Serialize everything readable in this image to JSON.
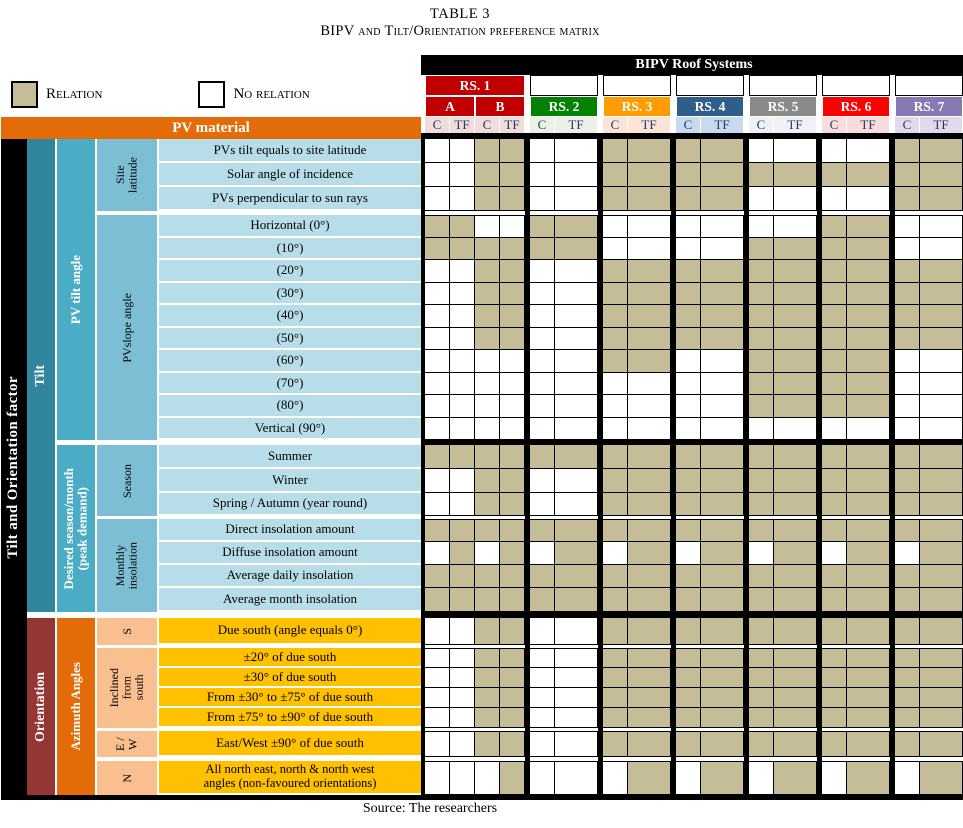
{
  "title": "TABLE 3",
  "subtitle": "BIPV and Tilt/Orientation preference matrix",
  "source": "Source:  The researchers",
  "legend": {
    "relation": "Relation",
    "no_relation": "No relation"
  },
  "colors": {
    "relation_fill": "#C4BD97",
    "no_relation_fill": "#FFFFFF",
    "pv_material_bar": "#E36C09",
    "factor_column": "#000000",
    "tilt_section": "#31859C",
    "orientation_section": "#943634",
    "tilt_subsection": "#4BACC6",
    "azimuth_subsection": "#E36C09",
    "tilt_subsub": "#7CBFD4",
    "orientation_subsub": "#FABF8F",
    "tilt_label_bg": "#B7DEE8",
    "orientation_label_bg": "#FFC000"
  },
  "header": {
    "roof_systems_title": "BIPV Roof Systems",
    "pv_material": "PV material",
    "material_cols": [
      "C",
      "TF"
    ],
    "systems": [
      {
        "name": "RS. 1",
        "color": "#C00000",
        "tint": "#F2DCDB",
        "subs": [
          "A",
          "B"
        ]
      },
      {
        "name": "RS. 2",
        "color": "#038103",
        "tint": "#EBF1E4"
      },
      {
        "name": "RS. 3",
        "color": "#FF9C00",
        "tint": "#FCE4D9"
      },
      {
        "name": "RS. 4",
        "color": "#2F5E8A",
        "tint": "#C7DAF0"
      },
      {
        "name": "RS. 5",
        "color": "#8A8A8A",
        "tint": "#EFF1F4"
      },
      {
        "name": "RS. 6",
        "color": "#FF0000",
        "tint": "#FADCDC"
      },
      {
        "name": "RS. 7",
        "color": "#8878B4",
        "tint": "#E0DAEC"
      }
    ]
  },
  "left": {
    "factor": "Tilt and Orientation factor",
    "sections": [
      {
        "id": "tilt",
        "label": "Tilt",
        "row_start": 0,
        "row_end": 19
      },
      {
        "id": "orientation",
        "label": "Orientation",
        "row_start": 20,
        "row_end": 26
      }
    ],
    "subsections": [
      {
        "id": "pv-tilt-angle",
        "label": "PV tilt angle",
        "group": "tilt",
        "row_start": 0,
        "row_end": 12
      },
      {
        "id": "desired-season",
        "label": "Desired season/month\n(peak demand)",
        "group": "tilt",
        "row_start": 13,
        "row_end": 19
      },
      {
        "id": "azimuth-angles",
        "label": "Azimuth Angles",
        "group": "orientation",
        "row_start": 20,
        "row_end": 26
      }
    ],
    "subsubs": [
      {
        "id": "site-latitude",
        "label": "Site\nlatitude",
        "group": "tilt",
        "row_start": 0,
        "row_end": 2
      },
      {
        "id": "pv-slope-angle",
        "label": "PVslope angle",
        "group": "tilt",
        "row_start": 3,
        "row_end": 12
      },
      {
        "id": "season",
        "label": "Season",
        "group": "tilt",
        "row_start": 13,
        "row_end": 15
      },
      {
        "id": "monthly-insolation",
        "label": "Monthly\ninsolation",
        "group": "tilt",
        "row_start": 16,
        "row_end": 19
      },
      {
        "id": "south",
        "label": "S",
        "group": "orientation",
        "row_start": 20,
        "row_end": 20
      },
      {
        "id": "inclined-from-south",
        "label": "Inclined\nfrom\nsouth",
        "group": "orientation",
        "row_start": 21,
        "row_end": 24
      },
      {
        "id": "east-west",
        "label": "E / W",
        "group": "orientation",
        "row_start": 25,
        "row_end": 25
      },
      {
        "id": "north",
        "label": "N",
        "group": "orientation",
        "row_start": 26,
        "row_end": 26
      }
    ]
  },
  "rows": [
    {
      "label": "PVs tilt equals to site latitude",
      "section": "tilt"
    },
    {
      "label": "Solar angle of incidence",
      "section": "tilt"
    },
    {
      "label": "PVs perpendicular to sun rays",
      "section": "tilt"
    },
    {
      "label": "Horizontal (0°)",
      "section": "tilt"
    },
    {
      "label": "(10°)",
      "section": "tilt"
    },
    {
      "label": "(20°)",
      "section": "tilt"
    },
    {
      "label": "(30°)",
      "section": "tilt"
    },
    {
      "label": "(40°)",
      "section": "tilt"
    },
    {
      "label": "(50°)",
      "section": "tilt"
    },
    {
      "label": "(60°)",
      "section": "tilt"
    },
    {
      "label": "(70°)",
      "section": "tilt"
    },
    {
      "label": "(80°)",
      "section": "tilt"
    },
    {
      "label": "Vertical (90°)",
      "section": "tilt"
    },
    {
      "label": "Summer",
      "section": "tilt"
    },
    {
      "label": "Winter",
      "section": "tilt"
    },
    {
      "label": "Spring / Autumn (year round)",
      "section": "tilt"
    },
    {
      "label": "Direct insolation amount",
      "section": "tilt"
    },
    {
      "label": "Diffuse insolation amount",
      "section": "tilt"
    },
    {
      "label": "Average daily insolation",
      "section": "tilt"
    },
    {
      "label": "Average month insolation",
      "section": "tilt"
    },
    {
      "label": "Due south (angle equals 0°)",
      "section": "orientation"
    },
    {
      "label": "±20° of due south",
      "section": "orientation"
    },
    {
      "label": "±30° of due south",
      "section": "orientation"
    },
    {
      "label": "From ±30° to ±75° of due south",
      "section": "orientation"
    },
    {
      "label": "From ±75° to ±90° of due south",
      "section": "orientation"
    },
    {
      "label": "East/West ±90° of due south",
      "section": "orientation"
    },
    {
      "label": "All north east, north & north west\nangles (non-favoured orientations)",
      "section": "orientation"
    }
  ],
  "matrix_columns": [
    "RS1-A-C",
    "RS1-A-TF",
    "RS1-B-C",
    "RS1-B-TF",
    "RS2-C",
    "RS2-TF",
    "RS3-C",
    "RS3-TF",
    "RS4-C",
    "RS4-TF",
    "RS5-C",
    "RS5-TF",
    "RS6-C",
    "RS6-TF",
    "RS7-C",
    "RS7-TF"
  ],
  "matrix": [
    [
      0,
      0,
      1,
      1,
      0,
      0,
      1,
      1,
      1,
      1,
      0,
      0,
      0,
      0,
      1,
      1
    ],
    [
      0,
      0,
      1,
      1,
      0,
      0,
      1,
      1,
      1,
      1,
      1,
      1,
      1,
      1,
      1,
      1
    ],
    [
      0,
      0,
      1,
      1,
      0,
      0,
      1,
      1,
      1,
      1,
      0,
      0,
      0,
      0,
      1,
      1
    ],
    [
      1,
      1,
      0,
      0,
      1,
      1,
      0,
      0,
      0,
      0,
      0,
      0,
      1,
      1,
      0,
      0
    ],
    [
      1,
      1,
      1,
      1,
      1,
      1,
      0,
      0,
      0,
      0,
      1,
      1,
      1,
      1,
      0,
      0
    ],
    [
      0,
      0,
      1,
      1,
      0,
      0,
      1,
      1,
      1,
      1,
      1,
      1,
      1,
      1,
      1,
      1
    ],
    [
      0,
      0,
      1,
      1,
      0,
      0,
      1,
      1,
      1,
      1,
      1,
      1,
      1,
      1,
      1,
      1
    ],
    [
      0,
      0,
      1,
      1,
      0,
      0,
      1,
      1,
      1,
      1,
      1,
      1,
      1,
      1,
      1,
      1
    ],
    [
      0,
      0,
      1,
      1,
      0,
      0,
      1,
      1,
      1,
      1,
      1,
      1,
      1,
      1,
      1,
      1
    ],
    [
      0,
      0,
      0,
      0,
      0,
      0,
      1,
      1,
      0,
      0,
      1,
      1,
      1,
      1,
      0,
      0
    ],
    [
      0,
      0,
      0,
      0,
      0,
      0,
      0,
      0,
      0,
      0,
      1,
      1,
      1,
      1,
      0,
      0
    ],
    [
      0,
      0,
      0,
      0,
      0,
      0,
      0,
      0,
      0,
      0,
      1,
      1,
      1,
      1,
      0,
      0
    ],
    [
      0,
      0,
      0,
      0,
      0,
      0,
      0,
      0,
      0,
      0,
      0,
      0,
      0,
      0,
      0,
      0
    ],
    [
      1,
      1,
      1,
      1,
      1,
      1,
      1,
      1,
      1,
      1,
      1,
      1,
      1,
      1,
      1,
      1
    ],
    [
      0,
      0,
      1,
      1,
      0,
      0,
      1,
      1,
      1,
      1,
      1,
      1,
      1,
      1,
      1,
      1
    ],
    [
      0,
      0,
      1,
      1,
      0,
      0,
      1,
      1,
      1,
      1,
      1,
      1,
      1,
      1,
      1,
      1
    ],
    [
      1,
      1,
      1,
      1,
      1,
      1,
      1,
      1,
      1,
      1,
      1,
      1,
      1,
      1,
      1,
      1
    ],
    [
      0,
      1,
      0,
      1,
      0,
      1,
      0,
      1,
      0,
      1,
      0,
      1,
      0,
      1,
      0,
      1
    ],
    [
      1,
      1,
      1,
      1,
      1,
      1,
      1,
      1,
      1,
      1,
      1,
      1,
      1,
      1,
      1,
      1
    ],
    [
      1,
      1,
      1,
      1,
      1,
      1,
      1,
      1,
      1,
      1,
      1,
      1,
      1,
      1,
      1,
      1
    ],
    [
      0,
      0,
      1,
      1,
      0,
      0,
      1,
      1,
      1,
      1,
      1,
      1,
      1,
      1,
      1,
      1
    ],
    [
      0,
      0,
      1,
      1,
      0,
      0,
      1,
      1,
      1,
      1,
      1,
      1,
      1,
      1,
      1,
      1
    ],
    [
      0,
      0,
      1,
      1,
      0,
      0,
      1,
      1,
      1,
      1,
      1,
      1,
      1,
      1,
      1,
      1
    ],
    [
      0,
      0,
      1,
      1,
      0,
      0,
      1,
      1,
      1,
      1,
      1,
      1,
      1,
      1,
      1,
      1
    ],
    [
      0,
      0,
      1,
      1,
      0,
      0,
      1,
      1,
      1,
      1,
      1,
      1,
      1,
      1,
      1,
      1
    ],
    [
      0,
      0,
      1,
      1,
      0,
      0,
      1,
      1,
      1,
      1,
      1,
      1,
      1,
      1,
      1,
      1
    ],
    [
      0,
      0,
      0,
      1,
      0,
      0,
      0,
      1,
      0,
      1,
      0,
      1,
      0,
      1,
      0,
      1
    ]
  ]
}
